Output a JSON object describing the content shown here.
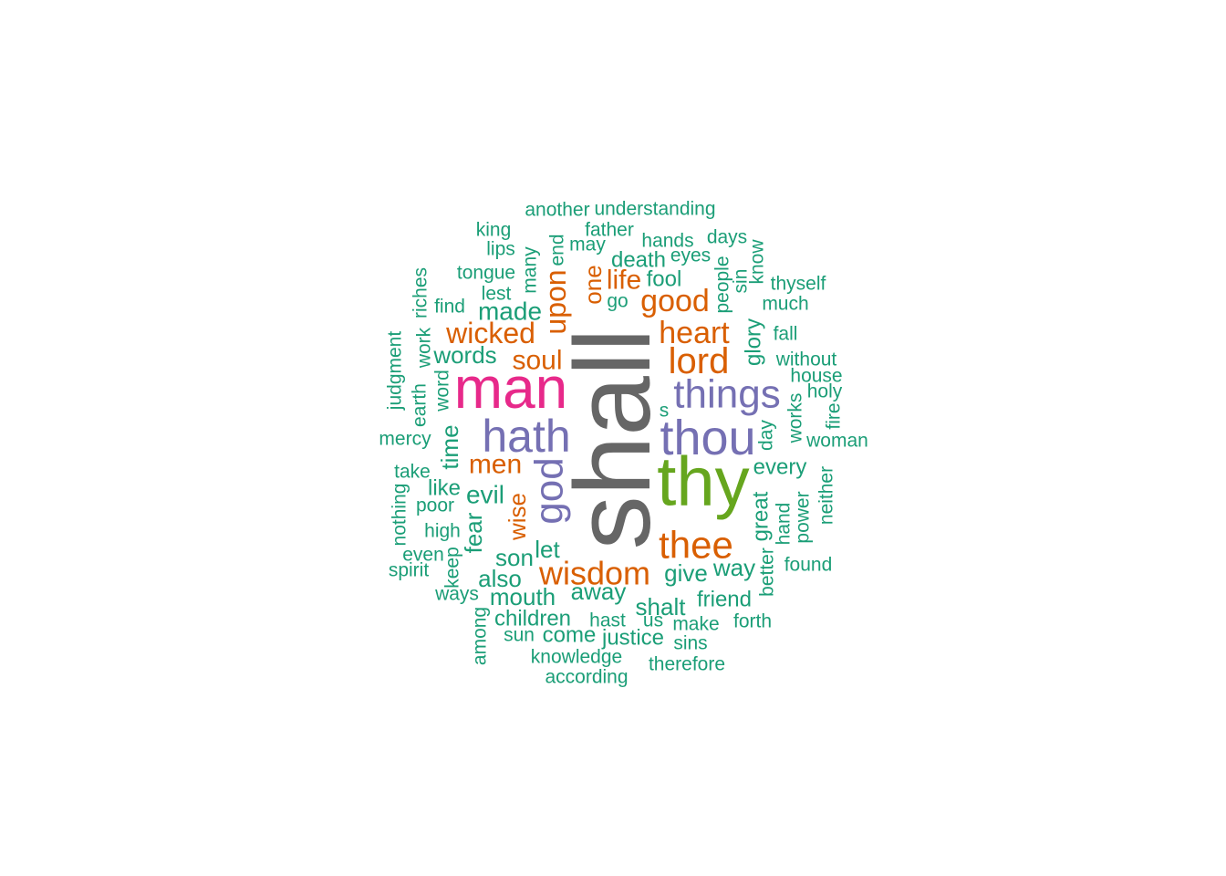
{
  "palette": {
    "teal": "#1b9e77",
    "orange": "#d95f02",
    "purple": "#7570b3",
    "magenta": "#e7298a",
    "green": "#66a61e",
    "gray": "#666666"
  },
  "words": [
    {
      "text": "shall",
      "color": "gray"
    },
    {
      "text": "thy",
      "color": "green"
    },
    {
      "text": "man",
      "color": "magenta"
    },
    {
      "text": "thou",
      "color": "purple"
    },
    {
      "text": "hath",
      "color": "purple"
    },
    {
      "text": "things",
      "color": "purple"
    },
    {
      "text": "god",
      "color": "purple"
    },
    {
      "text": "thee",
      "color": "orange"
    },
    {
      "text": "lord",
      "color": "orange"
    },
    {
      "text": "wisdom",
      "color": "orange"
    },
    {
      "text": "heart",
      "color": "orange"
    },
    {
      "text": "good",
      "color": "orange"
    },
    {
      "text": "wicked",
      "color": "orange"
    },
    {
      "text": "upon",
      "color": "orange"
    },
    {
      "text": "men",
      "color": "orange"
    },
    {
      "text": "soul",
      "color": "orange"
    },
    {
      "text": "life",
      "color": "orange"
    },
    {
      "text": "one",
      "color": "orange"
    },
    {
      "text": "wise",
      "color": "orange"
    },
    {
      "text": "another",
      "color": "teal"
    },
    {
      "text": "understanding",
      "color": "teal"
    },
    {
      "text": "king",
      "color": "teal"
    },
    {
      "text": "father",
      "color": "teal"
    },
    {
      "text": "lips",
      "color": "teal"
    },
    {
      "text": "may",
      "color": "teal"
    },
    {
      "text": "end",
      "color": "teal"
    },
    {
      "text": "many",
      "color": "teal"
    },
    {
      "text": "hands",
      "color": "teal"
    },
    {
      "text": "days",
      "color": "teal"
    },
    {
      "text": "eyes",
      "color": "teal"
    },
    {
      "text": "death",
      "color": "teal"
    },
    {
      "text": "tongue",
      "color": "teal"
    },
    {
      "text": "fool",
      "color": "teal"
    },
    {
      "text": "know",
      "color": "teal"
    },
    {
      "text": "people",
      "color": "teal"
    },
    {
      "text": "sin",
      "color": "teal"
    },
    {
      "text": "thyself",
      "color": "teal"
    },
    {
      "text": "lest",
      "color": "teal"
    },
    {
      "text": "riches",
      "color": "teal"
    },
    {
      "text": "find",
      "color": "teal"
    },
    {
      "text": "made",
      "color": "teal"
    },
    {
      "text": "go",
      "color": "teal"
    },
    {
      "text": "much",
      "color": "teal"
    },
    {
      "text": "fall",
      "color": "teal"
    },
    {
      "text": "judgment",
      "color": "teal"
    },
    {
      "text": "work",
      "color": "teal"
    },
    {
      "text": "words",
      "color": "teal"
    },
    {
      "text": "glory",
      "color": "teal"
    },
    {
      "text": "without",
      "color": "teal"
    },
    {
      "text": "house",
      "color": "teal"
    },
    {
      "text": "earth",
      "color": "teal"
    },
    {
      "text": "word",
      "color": "teal"
    },
    {
      "text": "holy",
      "color": "teal"
    },
    {
      "text": "s",
      "color": "teal"
    },
    {
      "text": "works",
      "color": "teal"
    },
    {
      "text": "fire",
      "color": "teal"
    },
    {
      "text": "mercy",
      "color": "teal"
    },
    {
      "text": "time",
      "color": "teal"
    },
    {
      "text": "day",
      "color": "teal"
    },
    {
      "text": "woman",
      "color": "teal"
    },
    {
      "text": "take",
      "color": "teal"
    },
    {
      "text": "every",
      "color": "teal"
    },
    {
      "text": "like",
      "color": "teal"
    },
    {
      "text": "neither",
      "color": "teal"
    },
    {
      "text": "evil",
      "color": "teal"
    },
    {
      "text": "poor",
      "color": "teal"
    },
    {
      "text": "nothing",
      "color": "teal"
    },
    {
      "text": "great",
      "color": "teal"
    },
    {
      "text": "hand",
      "color": "teal"
    },
    {
      "text": "power",
      "color": "teal"
    },
    {
      "text": "high",
      "color": "teal"
    },
    {
      "text": "fear",
      "color": "teal"
    },
    {
      "text": "even",
      "color": "teal"
    },
    {
      "text": "let",
      "color": "teal"
    },
    {
      "text": "son",
      "color": "teal"
    },
    {
      "text": "keep",
      "color": "teal"
    },
    {
      "text": "spirit",
      "color": "teal"
    },
    {
      "text": "found",
      "color": "teal"
    },
    {
      "text": "way",
      "color": "teal"
    },
    {
      "text": "also",
      "color": "teal"
    },
    {
      "text": "give",
      "color": "teal"
    },
    {
      "text": "better",
      "color": "teal"
    },
    {
      "text": "away",
      "color": "teal"
    },
    {
      "text": "ways",
      "color": "teal"
    },
    {
      "text": "mouth",
      "color": "teal"
    },
    {
      "text": "friend",
      "color": "teal"
    },
    {
      "text": "shalt",
      "color": "teal"
    },
    {
      "text": "among",
      "color": "teal"
    },
    {
      "text": "children",
      "color": "teal"
    },
    {
      "text": "hast",
      "color": "teal"
    },
    {
      "text": "us",
      "color": "teal"
    },
    {
      "text": "make",
      "color": "teal"
    },
    {
      "text": "forth",
      "color": "teal"
    },
    {
      "text": "sun",
      "color": "teal"
    },
    {
      "text": "come",
      "color": "teal"
    },
    {
      "text": "justice",
      "color": "teal"
    },
    {
      "text": "sins",
      "color": "teal"
    },
    {
      "text": "knowledge",
      "color": "teal"
    },
    {
      "text": "therefore",
      "color": "teal"
    },
    {
      "text": "according",
      "color": "teal"
    }
  ]
}
